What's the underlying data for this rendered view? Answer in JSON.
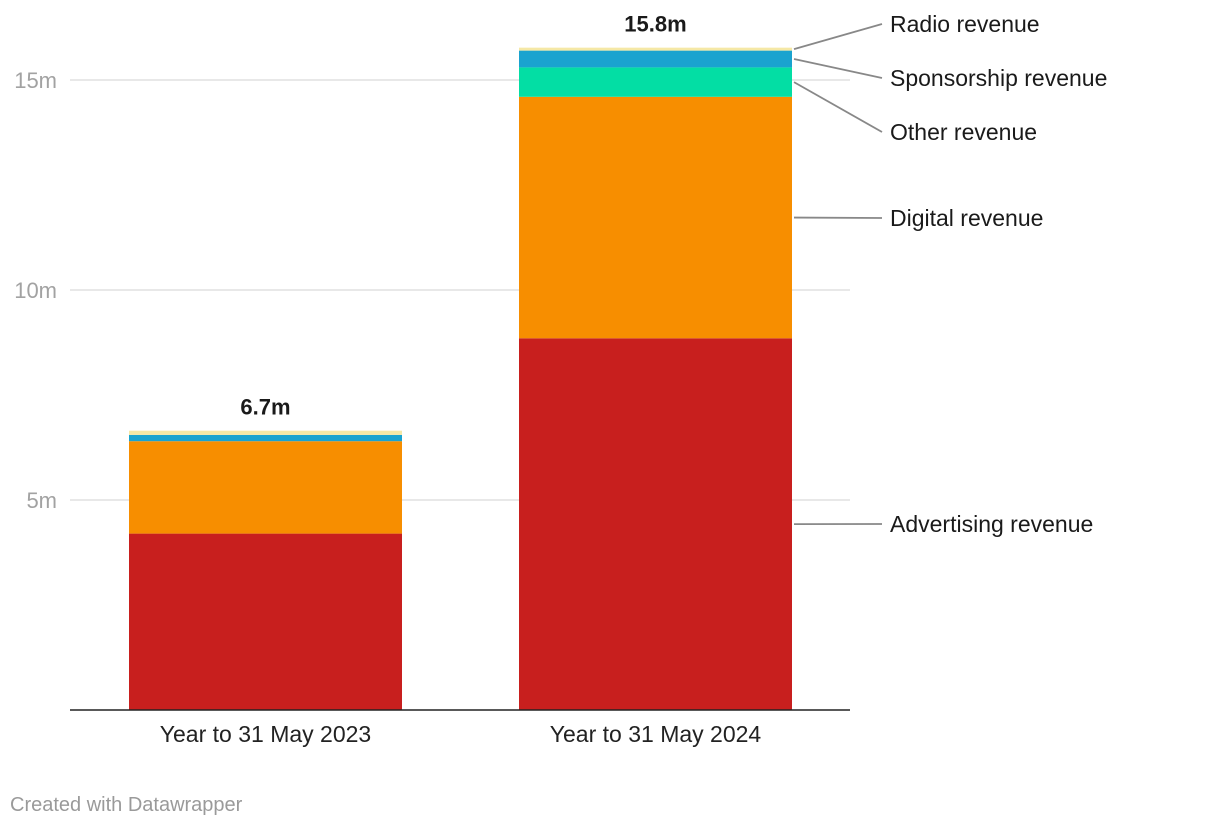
{
  "chart_data": {
    "type": "bar",
    "stacked": true,
    "title": "",
    "xlabel": "",
    "ylabel": "",
    "ylim": [
      0,
      16
    ],
    "y_ticks": [
      {
        "value": 5,
        "label": "5m"
      },
      {
        "value": 10,
        "label": "10m"
      },
      {
        "value": 15,
        "label": "15m"
      }
    ],
    "categories": [
      "Year to 31 May 2023",
      "Year to 31 May 2024"
    ],
    "totals": [
      6.7,
      15.8
    ],
    "total_labels": [
      "6.7m",
      "15.8m"
    ],
    "series": [
      {
        "name": "Advertising revenue",
        "color": "#c81f1e",
        "values": [
          4.2,
          8.85
        ]
      },
      {
        "name": "Digital revenue",
        "color": "#f78e00",
        "values": [
          2.2,
          5.75
        ]
      },
      {
        "name": "Other revenue",
        "color": "#03dea4",
        "values": [
          0.0,
          0.7
        ]
      },
      {
        "name": "Sponsorship revenue",
        "color": "#1aa3cf",
        "values": [
          0.15,
          0.4
        ]
      },
      {
        "name": "Radio revenue",
        "color": "#f5e8a6",
        "values": [
          0.1,
          0.07
        ]
      }
    ],
    "legend_placement": "right, direct labels on second bar"
  },
  "footer": {
    "credit": "Created with Datawrapper"
  }
}
